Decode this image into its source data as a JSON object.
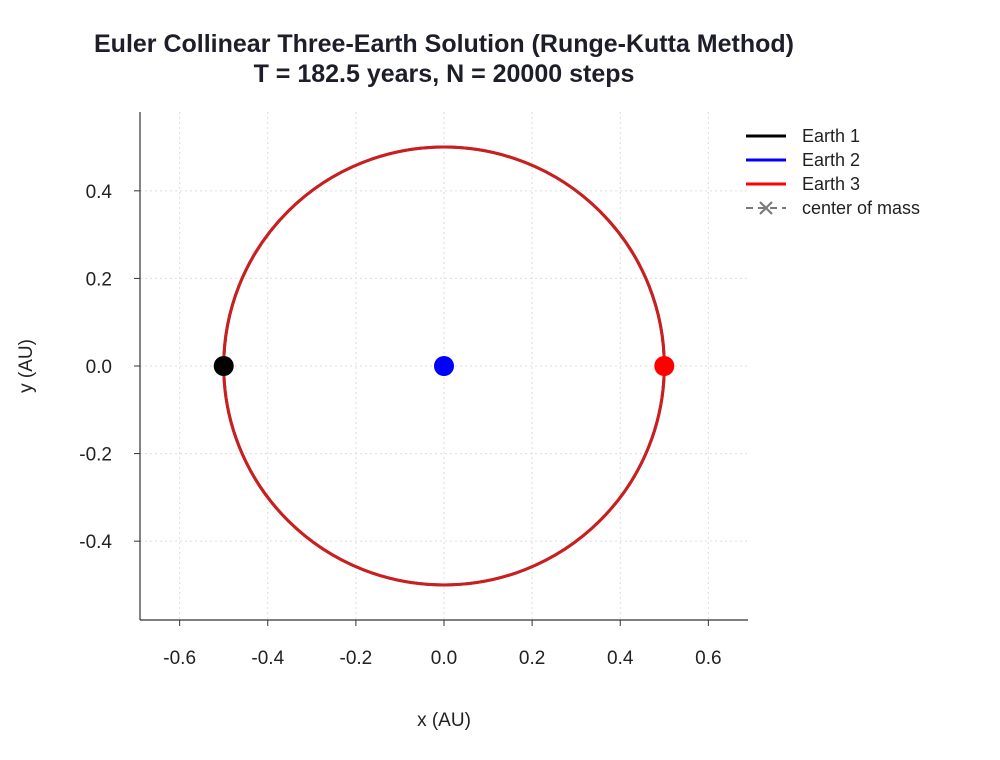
{
  "chart_data": {
    "type": "scatter",
    "title": "Euler Collinear Three-Earth Solution (Runge-Kutta Method)",
    "subtitle": "T = 182.5 years, N = 20000 steps",
    "xlabel": "x (AU)",
    "ylabel": "y (AU)",
    "xlim": [
      -0.69,
      0.69
    ],
    "ylim": [
      -0.58,
      0.58
    ],
    "xticks": [
      -0.6,
      -0.4,
      -0.2,
      0.0,
      0.2,
      0.4,
      0.6
    ],
    "xtick_labels": [
      "-0.6",
      "-0.4",
      "-0.2",
      "0.0",
      "0.2",
      "0.4",
      "0.6"
    ],
    "yticks": [
      -0.4,
      -0.2,
      0.0,
      0.2,
      0.4
    ],
    "ytick_labels": [
      "-0.4",
      "-0.2",
      "0.0",
      "0.2",
      "0.4"
    ],
    "grid": true,
    "legend_position": "top-right outside",
    "series": [
      {
        "name": "Earth 1",
        "color": "#000000",
        "orbit": {
          "center": [
            0.0,
            0.0
          ],
          "radius": 0.5
        },
        "final_position": [
          -0.5,
          0.0
        ]
      },
      {
        "name": "Earth 2",
        "color": "#0000ff",
        "orbit": {
          "center": [
            0.0,
            0.0
          ],
          "radius": 0.0
        },
        "final_position": [
          0.0,
          0.0
        ]
      },
      {
        "name": "Earth 3",
        "color": "#ff0000",
        "orbit": {
          "center": [
            0.0,
            0.0
          ],
          "radius": 0.5
        },
        "final_position": [
          0.5,
          0.0
        ]
      }
    ],
    "orbit_trace_color": "#c82020",
    "center_of_mass": {
      "name": "center of mass",
      "color": "#7a7a7a",
      "position": [
        0.0,
        0.0
      ]
    }
  }
}
